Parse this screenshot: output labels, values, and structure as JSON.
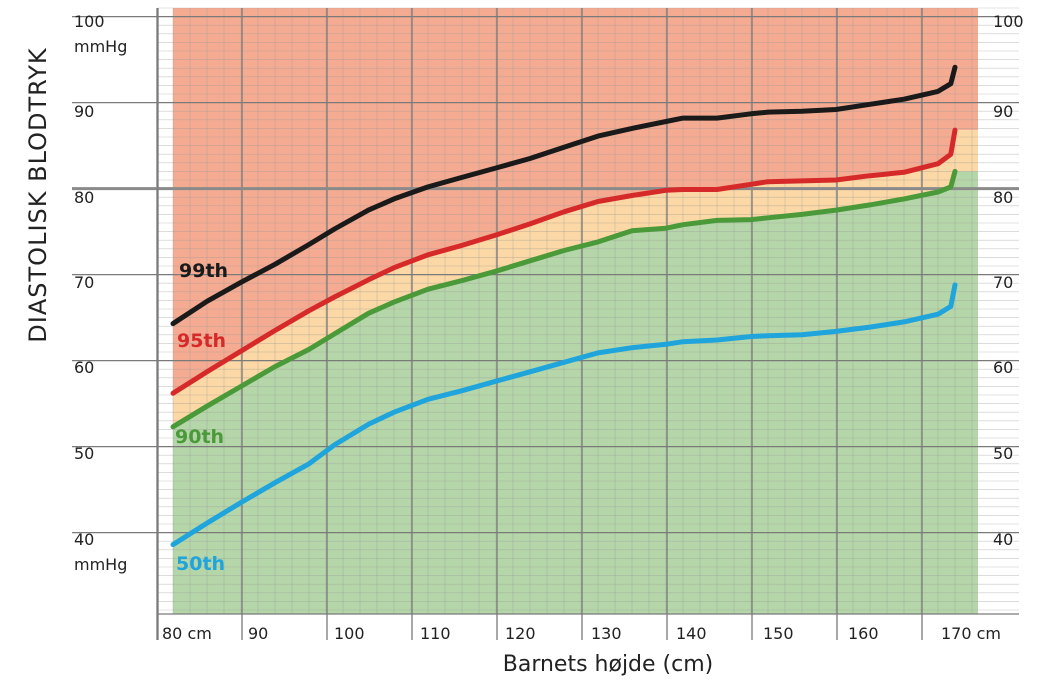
{
  "chart_data": {
    "type": "line",
    "ylabel": "DIASTOLISK BLODTRYK",
    "xlabel": "Barnets højde (cm)",
    "xlim": [
      80,
      172
    ],
    "ylim": [
      30,
      100
    ],
    "x_ticks": [
      "80 cm",
      "90",
      "100",
      "110",
      "120",
      "130",
      "140",
      "150",
      "160",
      "170 cm"
    ],
    "y_ticks_left": [
      "100",
      "mmHg",
      "90",
      "80",
      "70",
      "60",
      "50",
      "40",
      "mmHg"
    ],
    "y_ticks_right": [
      "100",
      "90",
      "80",
      "70",
      "60",
      "50",
      "40"
    ],
    "zones": {
      "above_95th": "#f5ab91",
      "between_90th_95th": "#fbd8a5",
      "below_90th": "#b5d6a9"
    },
    "series": [
      {
        "name": "99th",
        "color": "#1a1a1a",
        "x": [
          80,
          84,
          88,
          92,
          96,
          99,
          103,
          106,
          110,
          114,
          118,
          122,
          126,
          130,
          134,
          138,
          140,
          144,
          148,
          150,
          154,
          158,
          162,
          166,
          170,
          171.5,
          172
        ],
        "y": [
          64.3,
          66.9,
          69.1,
          71.2,
          73.5,
          75.3,
          77.5,
          78.8,
          80.2,
          81.3,
          82.4,
          83.5,
          84.8,
          86.1,
          87.0,
          87.8,
          88.2,
          88.2,
          88.7,
          88.9,
          89.0,
          89.2,
          89.8,
          90.4,
          91.3,
          92.2,
          94.1
        ]
      },
      {
        "name": "95th",
        "color": "#d62a2a",
        "x": [
          80,
          84,
          88,
          92,
          96,
          99,
          103,
          106,
          110,
          114,
          118,
          122,
          126,
          130,
          134,
          138,
          140,
          144,
          148,
          150,
          154,
          158,
          162,
          166,
          170,
          171.5,
          172
        ],
        "y": [
          56.2,
          58.7,
          61.1,
          63.5,
          65.8,
          67.4,
          69.4,
          70.8,
          72.3,
          73.4,
          74.6,
          75.9,
          77.3,
          78.5,
          79.2,
          79.8,
          79.9,
          79.9,
          80.5,
          80.8,
          80.9,
          81.0,
          81.5,
          81.9,
          82.9,
          84.0,
          86.8
        ]
      },
      {
        "name": "90th",
        "color": "#4a9a3a",
        "x": [
          80,
          84,
          88,
          92,
          96,
          99,
          103,
          106,
          110,
          114,
          118,
          122,
          126,
          130,
          134,
          138,
          140,
          144,
          148,
          150,
          154,
          158,
          162,
          166,
          170,
          171.5,
          172
        ],
        "y": [
          52.3,
          54.7,
          57.0,
          59.3,
          61.3,
          63.1,
          65.5,
          66.8,
          68.3,
          69.3,
          70.4,
          71.6,
          72.8,
          73.8,
          75.1,
          75.4,
          75.8,
          76.3,
          76.4,
          76.6,
          77.0,
          77.5,
          78.1,
          78.8,
          79.6,
          80.2,
          82.0
        ]
      },
      {
        "name": "50th",
        "color": "#1fa4dc",
        "x": [
          80,
          84,
          88,
          92,
          96,
          99,
          103,
          106,
          110,
          114,
          118,
          122,
          126,
          130,
          134,
          138,
          140,
          144,
          148,
          150,
          154,
          158,
          162,
          166,
          170,
          171.5,
          172
        ],
        "y": [
          38.6,
          41.1,
          43.5,
          45.8,
          48.0,
          50.2,
          52.6,
          54.0,
          55.5,
          56.5,
          57.6,
          58.7,
          59.8,
          60.9,
          61.5,
          61.9,
          62.2,
          62.4,
          62.8,
          62.9,
          63.0,
          63.4,
          63.9,
          64.5,
          65.4,
          66.3,
          68.8
        ]
      }
    ]
  }
}
